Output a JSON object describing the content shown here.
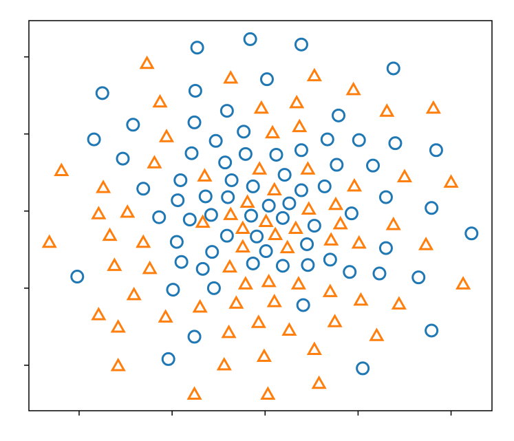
{
  "chart_data": {
    "type": "scatter",
    "xlim": [
      -2.54,
      2.44
    ],
    "ylim": [
      -2.59,
      2.47
    ],
    "xticks": [
      -2,
      -1,
      0,
      1,
      2
    ],
    "yticks": [
      -2,
      -1,
      0,
      1,
      2
    ],
    "series": [
      {
        "color": "#1f77b4",
        "marker": "circle",
        "x": [
          -0.16,
          -0.73,
          0.39,
          1.38,
          -1.75,
          0.02,
          -0.75,
          -0.41,
          0.79,
          -1.42,
          -0.76,
          -0.23,
          -1.84,
          -0.53,
          0.67,
          1.01,
          1.4,
          1.84,
          -1.53,
          -0.79,
          -0.21,
          0.12,
          0.39,
          -0.43,
          0.77,
          1.16,
          0.21,
          -1.31,
          -0.91,
          -0.36,
          -0.13,
          0.39,
          0.64,
          1.3,
          -0.94,
          -0.64,
          -0.4,
          0.04,
          0.26,
          1.79,
          -1.14,
          -0.81,
          -0.58,
          -0.15,
          0.19,
          0.93,
          0.53,
          2.22,
          -0.41,
          -0.09,
          -0.95,
          0.45,
          0.01,
          -0.57,
          1.3,
          -0.9,
          -0.13,
          0.19,
          0.46,
          0.7,
          -0.67,
          0.91,
          1.23,
          -2.02,
          1.65,
          -0.55,
          -0.99,
          0.41,
          1.79,
          -0.76,
          -1.04,
          1.05
        ],
        "y": [
          2.23,
          2.12,
          2.16,
          1.85,
          1.53,
          1.71,
          1.56,
          1.3,
          1.24,
          1.12,
          1.15,
          1.03,
          0.93,
          0.91,
          0.93,
          0.92,
          0.88,
          0.79,
          0.68,
          0.75,
          0.74,
          0.73,
          0.79,
          0.63,
          0.6,
          0.59,
          0.47,
          0.29,
          0.4,
          0.4,
          0.32,
          0.27,
          0.32,
          0.18,
          0.14,
          0.19,
          0.18,
          0.07,
          0.1,
          0.04,
          -0.08,
          -0.11,
          -0.05,
          -0.06,
          -0.09,
          -0.03,
          -0.19,
          -0.29,
          -0.32,
          -0.33,
          -0.4,
          -0.43,
          -0.52,
          -0.53,
          -0.48,
          -0.66,
          -0.68,
          -0.71,
          -0.7,
          -0.63,
          -0.75,
          -0.79,
          -0.81,
          -0.85,
          -0.86,
          -1.0,
          -1.02,
          -1.22,
          -1.55,
          -1.63,
          -1.92,
          -2.04
        ]
      },
      {
        "color": "#ff7f0e",
        "marker": "triangle",
        "x": [
          -1.27,
          -0.37,
          0.53,
          0.95,
          -1.13,
          -0.04,
          0.34,
          1.31,
          1.81,
          0.37,
          0.08,
          -1.06,
          -1.19,
          -0.06,
          0.46,
          -2.19,
          -0.65,
          1.5,
          2.0,
          -1.74,
          0.1,
          0.96,
          -0.19,
          0.76,
          -1.79,
          -1.48,
          -0.37,
          0.47,
          0.01,
          -0.67,
          0.81,
          1.38,
          -0.24,
          0.33,
          -1.67,
          0.11,
          -2.32,
          -1.31,
          0.71,
          1.01,
          1.73,
          -0.24,
          0.24,
          -1.62,
          -1.24,
          -0.38,
          0.04,
          -0.21,
          0.36,
          2.13,
          0.7,
          -1.41,
          -0.31,
          0.1,
          1.03,
          1.44,
          -0.7,
          -1.79,
          -1.07,
          -0.07,
          0.75,
          -1.58,
          -0.39,
          0.26,
          1.2,
          0.53,
          -0.01,
          -1.58,
          -0.44,
          0.58,
          -0.76,
          0.03
        ],
        "y": [
          1.91,
          1.72,
          1.75,
          1.57,
          1.41,
          1.33,
          1.4,
          1.29,
          1.33,
          1.09,
          1.01,
          0.96,
          0.62,
          0.54,
          0.54,
          0.52,
          0.45,
          0.44,
          0.37,
          0.3,
          0.27,
          0.32,
          0.11,
          0.08,
          -0.04,
          -0.02,
          -0.05,
          0.02,
          -0.14,
          -0.15,
          -0.17,
          -0.18,
          -0.23,
          -0.23,
          -0.32,
          -0.31,
          -0.41,
          -0.41,
          -0.38,
          -0.42,
          -0.44,
          -0.47,
          -0.48,
          -0.71,
          -0.75,
          -0.73,
          -0.92,
          -0.95,
          -0.95,
          -0.95,
          -1.05,
          -1.09,
          -1.2,
          -1.18,
          -1.16,
          -1.21,
          -1.25,
          -1.35,
          -1.38,
          -1.45,
          -1.44,
          -1.51,
          -1.58,
          -1.55,
          -1.62,
          -1.8,
          -1.89,
          -2.01,
          -2.0,
          -2.24,
          -2.38,
          -2.38
        ]
      }
    ]
  }
}
